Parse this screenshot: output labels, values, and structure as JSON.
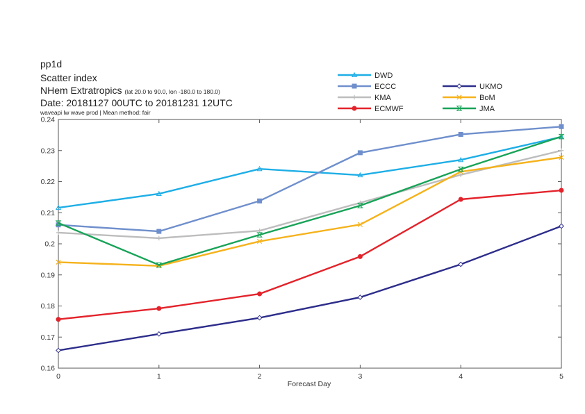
{
  "header": {
    "param": "pp1d",
    "statistic": "Scatter index",
    "region": "NHem Extratropics",
    "region_extent": "(lat  20.0 to 90.0, lon  -180.0 to  180.0)",
    "date": "Date: 20181127 00UTC to 20181231 12UTC",
    "subtitle": "waveapi lw wave prod | Mean method: fair"
  },
  "chart_data": {
    "type": "line",
    "xlabel": "Forecast Day",
    "ylabel": "",
    "x": [
      0,
      1,
      2,
      3,
      4,
      5
    ],
    "xlim": [
      0,
      5
    ],
    "ylim": [
      0.16,
      0.24
    ],
    "x_ticks": [
      "0",
      "1",
      "2",
      "3",
      "4",
      "5"
    ],
    "y_ticks": [
      "0.16",
      "0.17",
      "0.18",
      "0.19",
      "0.2",
      "0.21",
      "0.22",
      "0.23",
      "0.24"
    ],
    "grid": false,
    "legend_placement": "top-right",
    "series": [
      {
        "name": "DWD",
        "color": "#1eaee6",
        "marker": "tri",
        "values": [
          0.2116,
          0.2161,
          0.2241,
          0.2221,
          0.227,
          0.2344
        ]
      },
      {
        "name": "ECCC",
        "color": "#6f8fcc",
        "marker": "square",
        "values": [
          0.2061,
          0.204,
          0.2138,
          0.2293,
          0.2352,
          0.2377
        ]
      },
      {
        "name": "KMA",
        "color": "#bdbdbd",
        "marker": "plus",
        "values": [
          0.2036,
          0.2018,
          0.2042,
          0.2132,
          0.2222,
          0.23
        ]
      },
      {
        "name": "ECMWF",
        "color": "#e3232b",
        "marker": "circle",
        "values": [
          0.1757,
          0.1792,
          0.1839,
          0.1959,
          0.2143,
          0.2172
        ]
      },
      {
        "name": "UKMO",
        "color": "#2d2d8b",
        "marker": "diamond",
        "values": [
          0.1657,
          0.171,
          0.1762,
          0.1828,
          0.1934,
          0.2057
        ]
      },
      {
        "name": "BoM",
        "color": "#f5b21b",
        "marker": "x",
        "values": [
          0.1941,
          0.1929,
          0.2008,
          0.2062,
          0.2232,
          0.2278
        ]
      },
      {
        "name": "JMA",
        "color": "#18a358",
        "marker": "bowtie",
        "values": [
          0.2067,
          0.1932,
          0.2029,
          0.2123,
          0.224,
          0.2345
        ]
      }
    ]
  }
}
